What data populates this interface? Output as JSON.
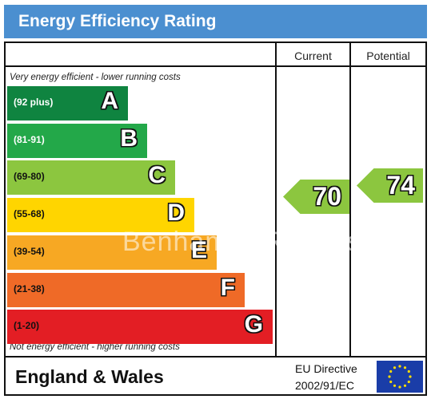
{
  "title": "Energy Efficiency Rating",
  "columns": {
    "current": "Current",
    "potential": "Potential"
  },
  "notes": {
    "top": "Very energy efficient - lower running costs",
    "bottom": "Not energy efficient - higher running costs"
  },
  "watermark": "Benham & Reeves",
  "footer": {
    "region": "England & Wales",
    "directive_line1": "EU Directive",
    "directive_line2": "2002/91/EC"
  },
  "chart_data": {
    "type": "bar",
    "categories": [
      "A",
      "B",
      "C",
      "D",
      "E",
      "F",
      "G"
    ],
    "ranges": [
      "(92 plus)",
      "(81-91)",
      "(69-80)",
      "(55-68)",
      "(39-54)",
      "(21-38)",
      "(1-20)"
    ],
    "colors": [
      "#0f8440",
      "#23a849",
      "#8cc63f",
      "#ffd500",
      "#f7a823",
      "#ef6a27",
      "#e31e24"
    ],
    "range_text_colors": [
      "#ffffff",
      "#ffffff",
      "#111111",
      "#111111",
      "#111111",
      "#111111",
      "#111111"
    ],
    "current": {
      "value": 70,
      "band": "C",
      "color": "#8cc63f"
    },
    "potential": {
      "value": 74,
      "band": "C",
      "color": "#8cc63f"
    }
  }
}
